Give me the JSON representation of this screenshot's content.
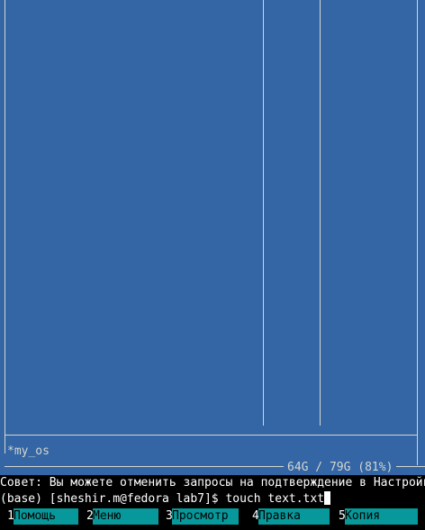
{
  "panel": {
    "current_dir": "*my_os",
    "disk_info": "64G / 79G (81%)"
  },
  "hint": "Совет: Вы можете отменить запросы на подтверждение в Настройках",
  "command_line": {
    "prompt": "(base) [sheshir.m@fedora lab7]$ ",
    "input": "touch text.txt"
  },
  "function_keys": [
    {
      "num": "1",
      "label": "Помощь"
    },
    {
      "num": "2",
      "label": "Меню"
    },
    {
      "num": "3",
      "label": "Просмотр"
    },
    {
      "num": "4",
      "label": "Правка"
    },
    {
      "num": "5",
      "label": "Копия"
    }
  ],
  "colors": {
    "panel_bg": "#3465a4",
    "panel_fg": "#d3d7cf",
    "fkey_bg": "#06989a",
    "terminal_bg": "#000000",
    "terminal_fg": "#ffffff"
  }
}
